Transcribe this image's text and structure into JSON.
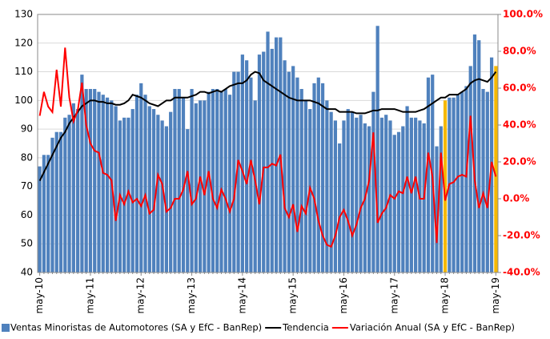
{
  "chart_data": {
    "type": "bar",
    "categories": [
      "may-10",
      null,
      null,
      null,
      null,
      null,
      null,
      null,
      null,
      null,
      null,
      null,
      "may-11",
      null,
      null,
      null,
      null,
      null,
      null,
      null,
      null,
      null,
      null,
      null,
      "may-12",
      null,
      null,
      null,
      null,
      null,
      null,
      null,
      null,
      null,
      null,
      null,
      "may-13",
      null,
      null,
      null,
      null,
      null,
      null,
      null,
      null,
      null,
      null,
      null,
      "may-14",
      null,
      null,
      null,
      null,
      null,
      null,
      null,
      null,
      null,
      null,
      null,
      "may-15",
      null,
      null,
      null,
      null,
      null,
      null,
      null,
      null,
      null,
      null,
      null,
      "may-16",
      null,
      null,
      null,
      null,
      null,
      null,
      null,
      null,
      null,
      null,
      null,
      "may-17",
      null,
      null,
      null,
      null,
      null,
      null,
      null,
      null,
      null,
      null,
      null,
      "may-18",
      null,
      null,
      null,
      null,
      null,
      null,
      null,
      null,
      null,
      null,
      null,
      "may-19"
    ],
    "series": [
      {
        "name": "Ventas Minoristas de Automotores (SA y EfC - BanRep)",
        "type": "bar",
        "color": "#4f81bd",
        "highlight": {
          "color": "#f5b800",
          "categories": [
            "may-18",
            "may-19"
          ]
        },
        "values": [
          77,
          81,
          81,
          87,
          89,
          89,
          94,
          95,
          99,
          97,
          109,
          104,
          104,
          104,
          103,
          102,
          101,
          100,
          98,
          93,
          94,
          94,
          97,
          102,
          106,
          102,
          98,
          97,
          95,
          93,
          91,
          96,
          104,
          104,
          101,
          90,
          104,
          99,
          100,
          100,
          103,
          104,
          104,
          103,
          104,
          102,
          110,
          110,
          116,
          114,
          108,
          100,
          116,
          117,
          124,
          118,
          122,
          122,
          114,
          110,
          112,
          108,
          104,
          100,
          97,
          106,
          108,
          106,
          100,
          96,
          93,
          85,
          93,
          97,
          96,
          94,
          95,
          92,
          91,
          103,
          126,
          94,
          95,
          93,
          88,
          89,
          91,
          98,
          94,
          94,
          93,
          92,
          108,
          109,
          84,
          91,
          100,
          101,
          101,
          102,
          103,
          105,
          112,
          123,
          121,
          104,
          103,
          115,
          112
        ]
      },
      {
        "name": "Tendencia",
        "type": "line",
        "color": "#000000",
        "values": [
          72,
          75,
          78,
          81,
          84,
          87,
          89,
          92,
          94,
          96,
          98,
          99,
          100,
          100,
          99.5,
          99.5,
          99,
          99,
          98.5,
          98.5,
          99,
          100,
          102,
          101.5,
          101,
          100,
          99,
          98.5,
          98,
          99,
          100,
          100,
          101,
          101,
          101,
          101,
          101.5,
          102,
          103,
          103,
          102.5,
          103,
          103.5,
          103,
          104,
          105,
          105.5,
          106,
          106,
          107,
          109,
          110,
          109.5,
          107,
          106,
          105,
          104,
          103,
          102,
          101,
          100.5,
          100,
          100,
          100,
          100,
          99.5,
          99,
          98,
          97,
          97,
          97,
          96,
          96,
          96,
          96,
          95.5,
          95.5,
          95.5,
          96,
          96.5,
          96.5,
          97,
          97,
          97,
          97,
          96.5,
          96,
          96,
          96,
          96,
          96.5,
          97,
          98,
          99,
          100,
          101,
          101,
          102,
          102,
          102,
          103,
          104,
          106,
          107,
          107.5,
          107,
          106.5,
          108,
          110
        ]
      },
      {
        "name": "Variación Anual (SA y EfC - BanRep)",
        "type": "line",
        "axis": "y2",
        "color": "#ff0000",
        "values": [
          45,
          58,
          50,
          47,
          70,
          50,
          82,
          55,
          42,
          48,
          63,
          40,
          30,
          26,
          25,
          14,
          13,
          10,
          -12,
          2,
          -3,
          4,
          -2,
          0,
          -4,
          2,
          -8,
          -6,
          13,
          8,
          -7,
          -5,
          0,
          0,
          5,
          15,
          -3,
          0,
          12,
          2,
          15,
          0,
          -5,
          5,
          0,
          -7,
          0,
          21,
          15,
          8,
          21,
          10,
          -3,
          17,
          17,
          19,
          18,
          24,
          -5,
          -10,
          -3,
          -18,
          -4,
          -8,
          6,
          0,
          -12,
          -20,
          -25,
          -26,
          -20,
          -10,
          -6,
          -12,
          -20,
          -14,
          -5,
          0,
          10,
          36,
          -13,
          -8,
          -5,
          2,
          0,
          4,
          3,
          12,
          3,
          12,
          0,
          0,
          25,
          12,
          -24,
          25,
          -1,
          8,
          9,
          12,
          13,
          12,
          45,
          10,
          -5,
          3,
          -5,
          20,
          12
        ]
      }
    ],
    "ylim": [
      40,
      130
    ],
    "yticks": [
      40,
      50,
      60,
      70,
      80,
      90,
      100,
      110,
      120,
      130
    ],
    "y2lim": [
      -40,
      100
    ],
    "y2ticks": [
      {
        "value": -40,
        "label": "-40.0%"
      },
      {
        "value": -20,
        "label": "-20.0%"
      },
      {
        "value": 0,
        "label": "0.0%"
      },
      {
        "value": 20,
        "label": "20.0%"
      },
      {
        "value": 40,
        "label": "40.0%"
      },
      {
        "value": 60,
        "label": "60.0%"
      },
      {
        "value": 80,
        "label": "80.0%"
      },
      {
        "value": 100,
        "label": "100.0%"
      }
    ],
    "y2_color": "#ff0000",
    "grid": true,
    "legend": "bottom"
  }
}
